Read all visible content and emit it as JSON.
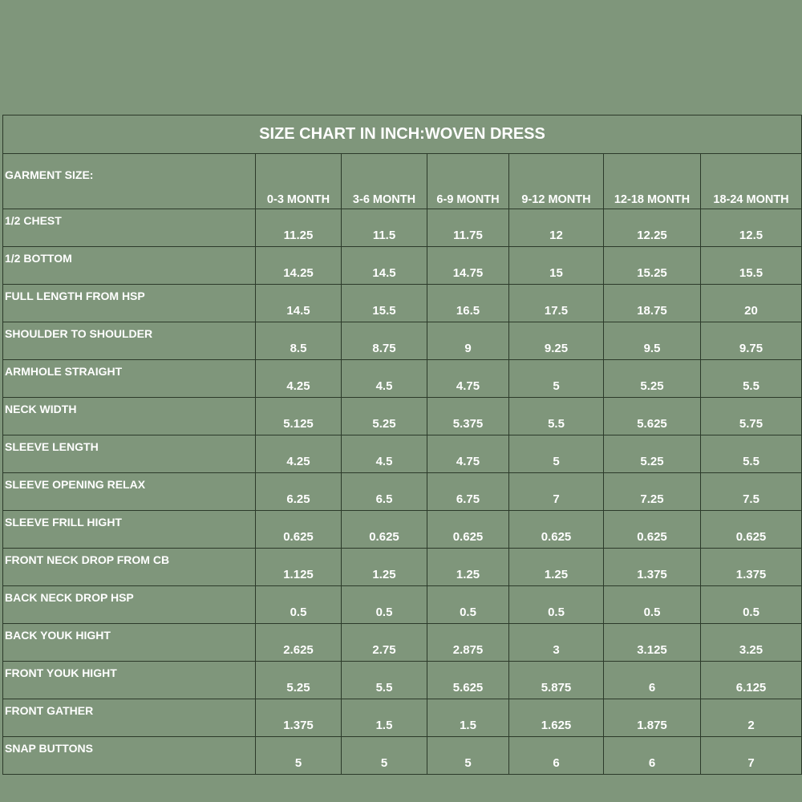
{
  "title": "SIZE CHART IN INCH:WOVEN DRESS",
  "header_label": "GARMENT SIZE:",
  "sizes": [
    "0-3 MONTH",
    "3-6 MONTH",
    "6-9 MONTH",
    "9-12 MONTH",
    "12-18 MONTH",
    "18-24 MONTH"
  ],
  "rows": [
    {
      "label": "1/2 CHEST",
      "values": [
        "11.25",
        "11.5",
        "11.75",
        "12",
        "12.25",
        "12.5"
      ]
    },
    {
      "label": "1/2 BOTTOM",
      "values": [
        "14.25",
        "14.5",
        "14.75",
        "15",
        "15.25",
        "15.5"
      ]
    },
    {
      "label": "FULL LENGTH FROM HSP",
      "values": [
        "14.5",
        "15.5",
        "16.5",
        "17.5",
        "18.75",
        "20"
      ]
    },
    {
      "label": "SHOULDER TO SHOULDER",
      "values": [
        "8.5",
        "8.75",
        "9",
        "9.25",
        "9.5",
        "9.75"
      ]
    },
    {
      "label": "ARMHOLE STRAIGHT",
      "values": [
        "4.25",
        "4.5",
        "4.75",
        "5",
        "5.25",
        "5.5"
      ]
    },
    {
      "label": "NECK WIDTH",
      "values": [
        "5.125",
        "5.25",
        "5.375",
        "5.5",
        "5.625",
        "5.75"
      ]
    },
    {
      "label": "SLEEVE LENGTH",
      "values": [
        "4.25",
        "4.5",
        "4.75",
        "5",
        "5.25",
        "5.5"
      ]
    },
    {
      "label": "SLEEVE OPENING RELAX",
      "values": [
        "6.25",
        "6.5",
        "6.75",
        "7",
        "7.25",
        "7.5"
      ]
    },
    {
      "label": "SLEEVE FRILL HIGHT",
      "values": [
        "0.625",
        "0.625",
        "0.625",
        "0.625",
        "0.625",
        "0.625"
      ]
    },
    {
      "label": "FRONT NECK DROP FROM CB",
      "values": [
        "1.125",
        "1.25",
        "1.25",
        "1.25",
        "1.375",
        "1.375"
      ]
    },
    {
      "label": "BACK NECK DROP HSP",
      "values": [
        "0.5",
        "0.5",
        "0.5",
        "0.5",
        "0.5",
        "0.5"
      ]
    },
    {
      "label": "BACK YOUK HIGHT",
      "values": [
        "2.625",
        "2.75",
        "2.875",
        "3",
        "3.125",
        "3.25"
      ]
    },
    {
      "label": "FRONT YOUK HIGHT",
      "values": [
        "5.25",
        "5.5",
        "5.625",
        "5.875",
        "6",
        "6.125"
      ]
    },
    {
      "label": "FRONT GATHER",
      "values": [
        "1.375",
        "1.5",
        "1.5",
        "1.625",
        "1.875",
        "2"
      ]
    },
    {
      "label": "SNAP BUTTONS",
      "values": [
        "5",
        "5",
        "5",
        "6",
        "6",
        "7"
      ]
    }
  ],
  "colors": {
    "background": "#7f967b",
    "text": "#ffffff",
    "grid": "#2c3a2a"
  }
}
